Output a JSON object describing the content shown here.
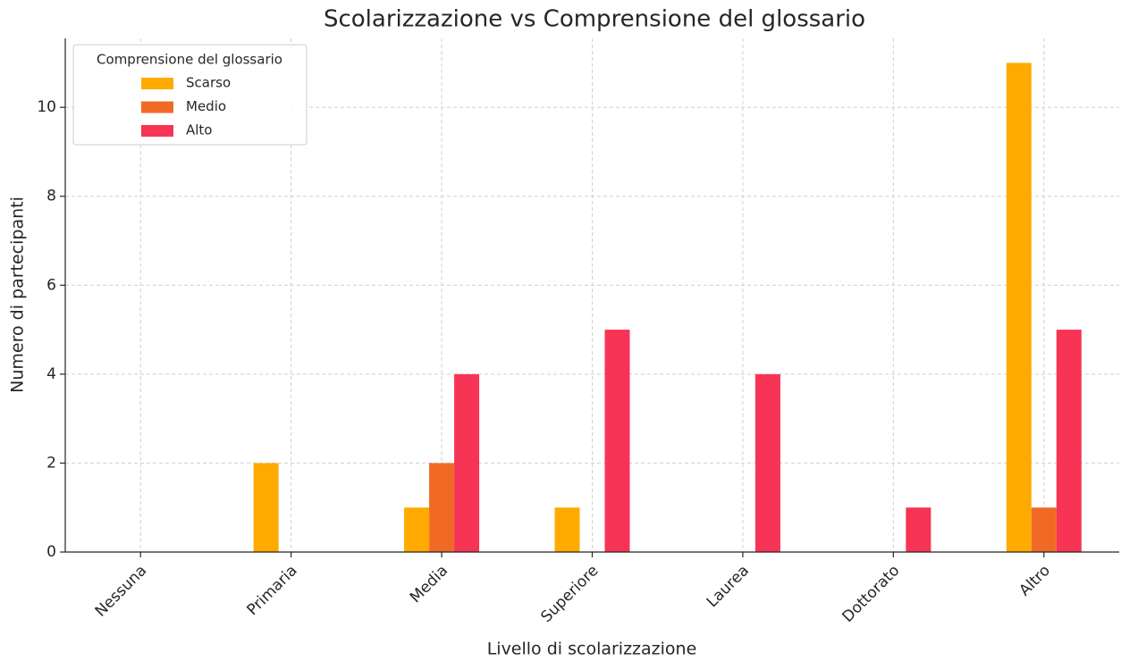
{
  "chart_data": {
    "type": "bar",
    "title": "Scolarizzazione vs Comprensione del glossario",
    "x_label": "Livello di scolarizzazione",
    "y_label": "Numero di partecipanti",
    "categories": [
      "Nessuna",
      "Primaria",
      "Media",
      "Superiore",
      "Laurea",
      "Dottorato",
      "Altro"
    ],
    "series": [
      {
        "name": "Scarso",
        "color": "#ffaa00",
        "values": [
          0,
          2,
          1,
          1,
          0,
          0,
          11
        ]
      },
      {
        "name": "Medio",
        "color": "#f06a25",
        "values": [
          0,
          0,
          2,
          0,
          0,
          0,
          1
        ]
      },
      {
        "name": "Alto",
        "color": "#f73455",
        "values": [
          0,
          0,
          4,
          5,
          4,
          1,
          5
        ]
      }
    ],
    "legend_title": "Comprensione del glossario",
    "legend": "upper left",
    "ylim": [
      0,
      11.55
    ],
    "yticks": [
      0,
      2,
      4,
      6,
      8,
      10
    ],
    "grid": true
  }
}
